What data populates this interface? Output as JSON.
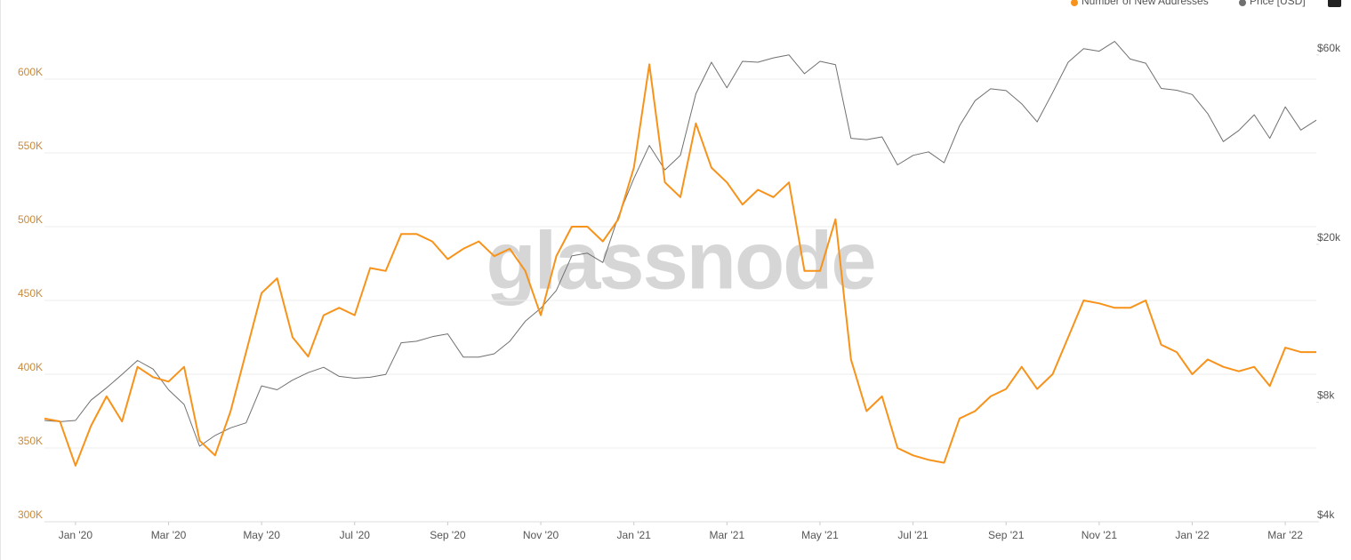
{
  "chart_data": {
    "type": "line",
    "watermark": "glassnode",
    "categories": [
      null,
      null,
      "Jan '20",
      null,
      null,
      null,
      null,
      null,
      "Mar '20",
      null,
      null,
      null,
      null,
      null,
      "May '20",
      null,
      null,
      null,
      null,
      null,
      "Jul '20",
      null,
      null,
      null,
      null,
      null,
      "Sep '20",
      null,
      null,
      null,
      null,
      null,
      "Nov '20",
      null,
      null,
      null,
      null,
      null,
      "Jan '21",
      null,
      null,
      null,
      null,
      null,
      "Mar '21",
      null,
      null,
      null,
      null,
      null,
      "May '21",
      null,
      null,
      null,
      null,
      null,
      "Jul '21",
      null,
      null,
      null,
      null,
      null,
      "Sep '21",
      null,
      null,
      null,
      null,
      null,
      "Nov '21",
      null,
      null,
      null,
      null,
      null,
      "Jan '22",
      null,
      null,
      null,
      null,
      null,
      "Mar '22",
      null,
      null
    ],
    "series": [
      {
        "name": "Number of New Addresses",
        "color": "#f7931a",
        "values": [
          370000,
          368000,
          338000,
          365000,
          385000,
          368000,
          405000,
          398000,
          395000,
          405000,
          355000,
          345000,
          375000,
          415000,
          455000,
          465000,
          425000,
          412000,
          440000,
          445000,
          440000,
          472000,
          470000,
          495000,
          495000,
          490000,
          478000,
          485000,
          490000,
          480000,
          485000,
          470000,
          440000,
          480000,
          500000,
          500000,
          490000,
          505000,
          540000,
          610000,
          530000,
          520000,
          570000,
          540000,
          530000,
          515000,
          525000,
          520000,
          530000,
          470000,
          470000,
          505000,
          410000,
          375000,
          385000,
          350000,
          345000,
          342000,
          340000,
          370000,
          375000,
          385000,
          390000,
          405000,
          390000,
          400000,
          425000,
          450000,
          448000,
          445000,
          445000,
          450000,
          420000,
          415000,
          400000,
          410000,
          405000,
          402000,
          405000,
          392000,
          418000,
          415000,
          415000
        ]
      },
      {
        "name": "Price [USD]",
        "color": "#707070",
        "axis": "y2",
        "values": [
          7200,
          7150,
          7200,
          8100,
          8700,
          9400,
          10200,
          9700,
          8600,
          7900,
          6200,
          6600,
          6900,
          7100,
          8800,
          8600,
          9100,
          9500,
          9800,
          9300,
          9200,
          9250,
          9400,
          11300,
          11400,
          11700,
          11900,
          10400,
          10400,
          10600,
          11400,
          12800,
          13800,
          15300,
          18700,
          19000,
          18000,
          23500,
          29300,
          35500,
          30800,
          33500,
          47900,
          57500,
          49600,
          57800,
          57500,
          59000,
          60000,
          53800,
          57800,
          56700,
          37000,
          36700,
          37300,
          31700,
          33500,
          34200,
          32100,
          39800,
          46000,
          49300,
          48800,
          45200,
          40700,
          48200,
          57500,
          62200,
          61300,
          64900,
          58600,
          57200,
          49400,
          48900,
          47700,
          42700,
          36300,
          38700,
          42400,
          37000,
          44400,
          38800,
          41100
        ]
      }
    ],
    "ylim": [
      300000,
      650000
    ],
    "yticks": [
      {
        "value": 300000,
        "label": "300K"
      },
      {
        "value": 350000,
        "label": "350K"
      },
      {
        "value": 400000,
        "label": "400K"
      },
      {
        "value": 450000,
        "label": "450K"
      },
      {
        "value": 500000,
        "label": "500K"
      },
      {
        "value": 550000,
        "label": "550K"
      },
      {
        "value": 600000,
        "label": "600K"
      }
    ],
    "y2lim": [
      4000,
      80000
    ],
    "y2scale": "log",
    "y2ticks": [
      {
        "value": 4000,
        "label": "$4k"
      },
      {
        "value": 8000,
        "label": "$8k"
      },
      {
        "value": 20000,
        "label": "$20k"
      },
      {
        "value": 60000,
        "label": "$60k"
      }
    ],
    "grid": true,
    "legend": "top-right"
  }
}
